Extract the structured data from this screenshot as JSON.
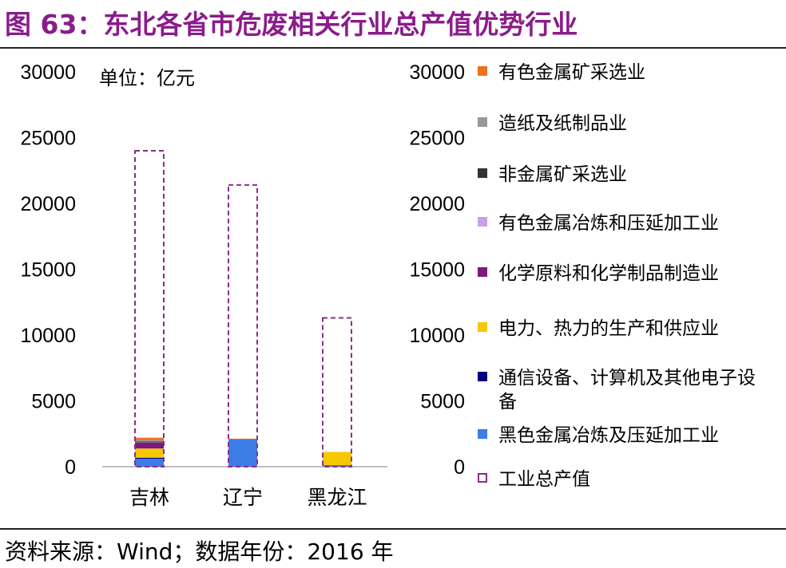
{
  "figure": {
    "title": "图 63：东北各省市危废相关行业总产值优势行业",
    "source": "资料来源：Wind；数据年份：2016 年"
  },
  "chart_data": {
    "type": "bar",
    "stacked": true,
    "categories": [
      "吉林",
      "辽宁",
      "黑龙江"
    ],
    "unit_label": "单位：亿元",
    "ylim": [
      0,
      30000
    ],
    "yticks": [
      0,
      5000,
      10000,
      15000,
      20000,
      25000,
      30000
    ],
    "secondary_yaxis_ticks": [
      0,
      5000,
      10000,
      15000,
      20000,
      25000,
      30000
    ],
    "grid": false,
    "legend_position": "right",
    "series": [
      {
        "name": "黑色金属冶炼及压延加工业",
        "color": "#3d7de8",
        "values": [
          600,
          2100,
          120
        ]
      },
      {
        "name": "通信设备、计算机及其他电子设备",
        "color": "#000080",
        "values": [
          80,
          0,
          0
        ]
      },
      {
        "name": "电力、热力的生产和供应业",
        "color": "#f5c800",
        "values": [
          700,
          0,
          1000
        ]
      },
      {
        "name": "化学原料和化学制品制造业",
        "color": "#7b1a7b",
        "values": [
          450,
          0,
          0
        ]
      },
      {
        "name": "有色金属冶炼和压延加工业",
        "color": "#c9a0e8",
        "values": [
          50,
          0,
          0
        ]
      },
      {
        "name": "非金属矿采选业",
        "color": "#333333",
        "values": [
          30,
          0,
          0
        ]
      },
      {
        "name": "造纸及纸制品业",
        "color": "#999999",
        "values": [
          120,
          0,
          0
        ]
      },
      {
        "name": "有色金属矿采选业",
        "color": "#f07020",
        "values": [
          170,
          30,
          0
        ]
      }
    ],
    "total_series": {
      "name": "工业总产值",
      "color": "#8b2d8b",
      "values": [
        24000,
        21400,
        11300
      ]
    },
    "legend_order": [
      "有色金属矿采选业",
      "造纸及纸制品业",
      "非金属矿采选业",
      "有色金属冶炼和压延加工业",
      "化学原料和化学制品制造业",
      "电力、热力的生产和供应业",
      "通信设备、计算机及其他电子设备",
      "黑色金属冶炼及压延加工业",
      "工业总产值"
    ]
  }
}
